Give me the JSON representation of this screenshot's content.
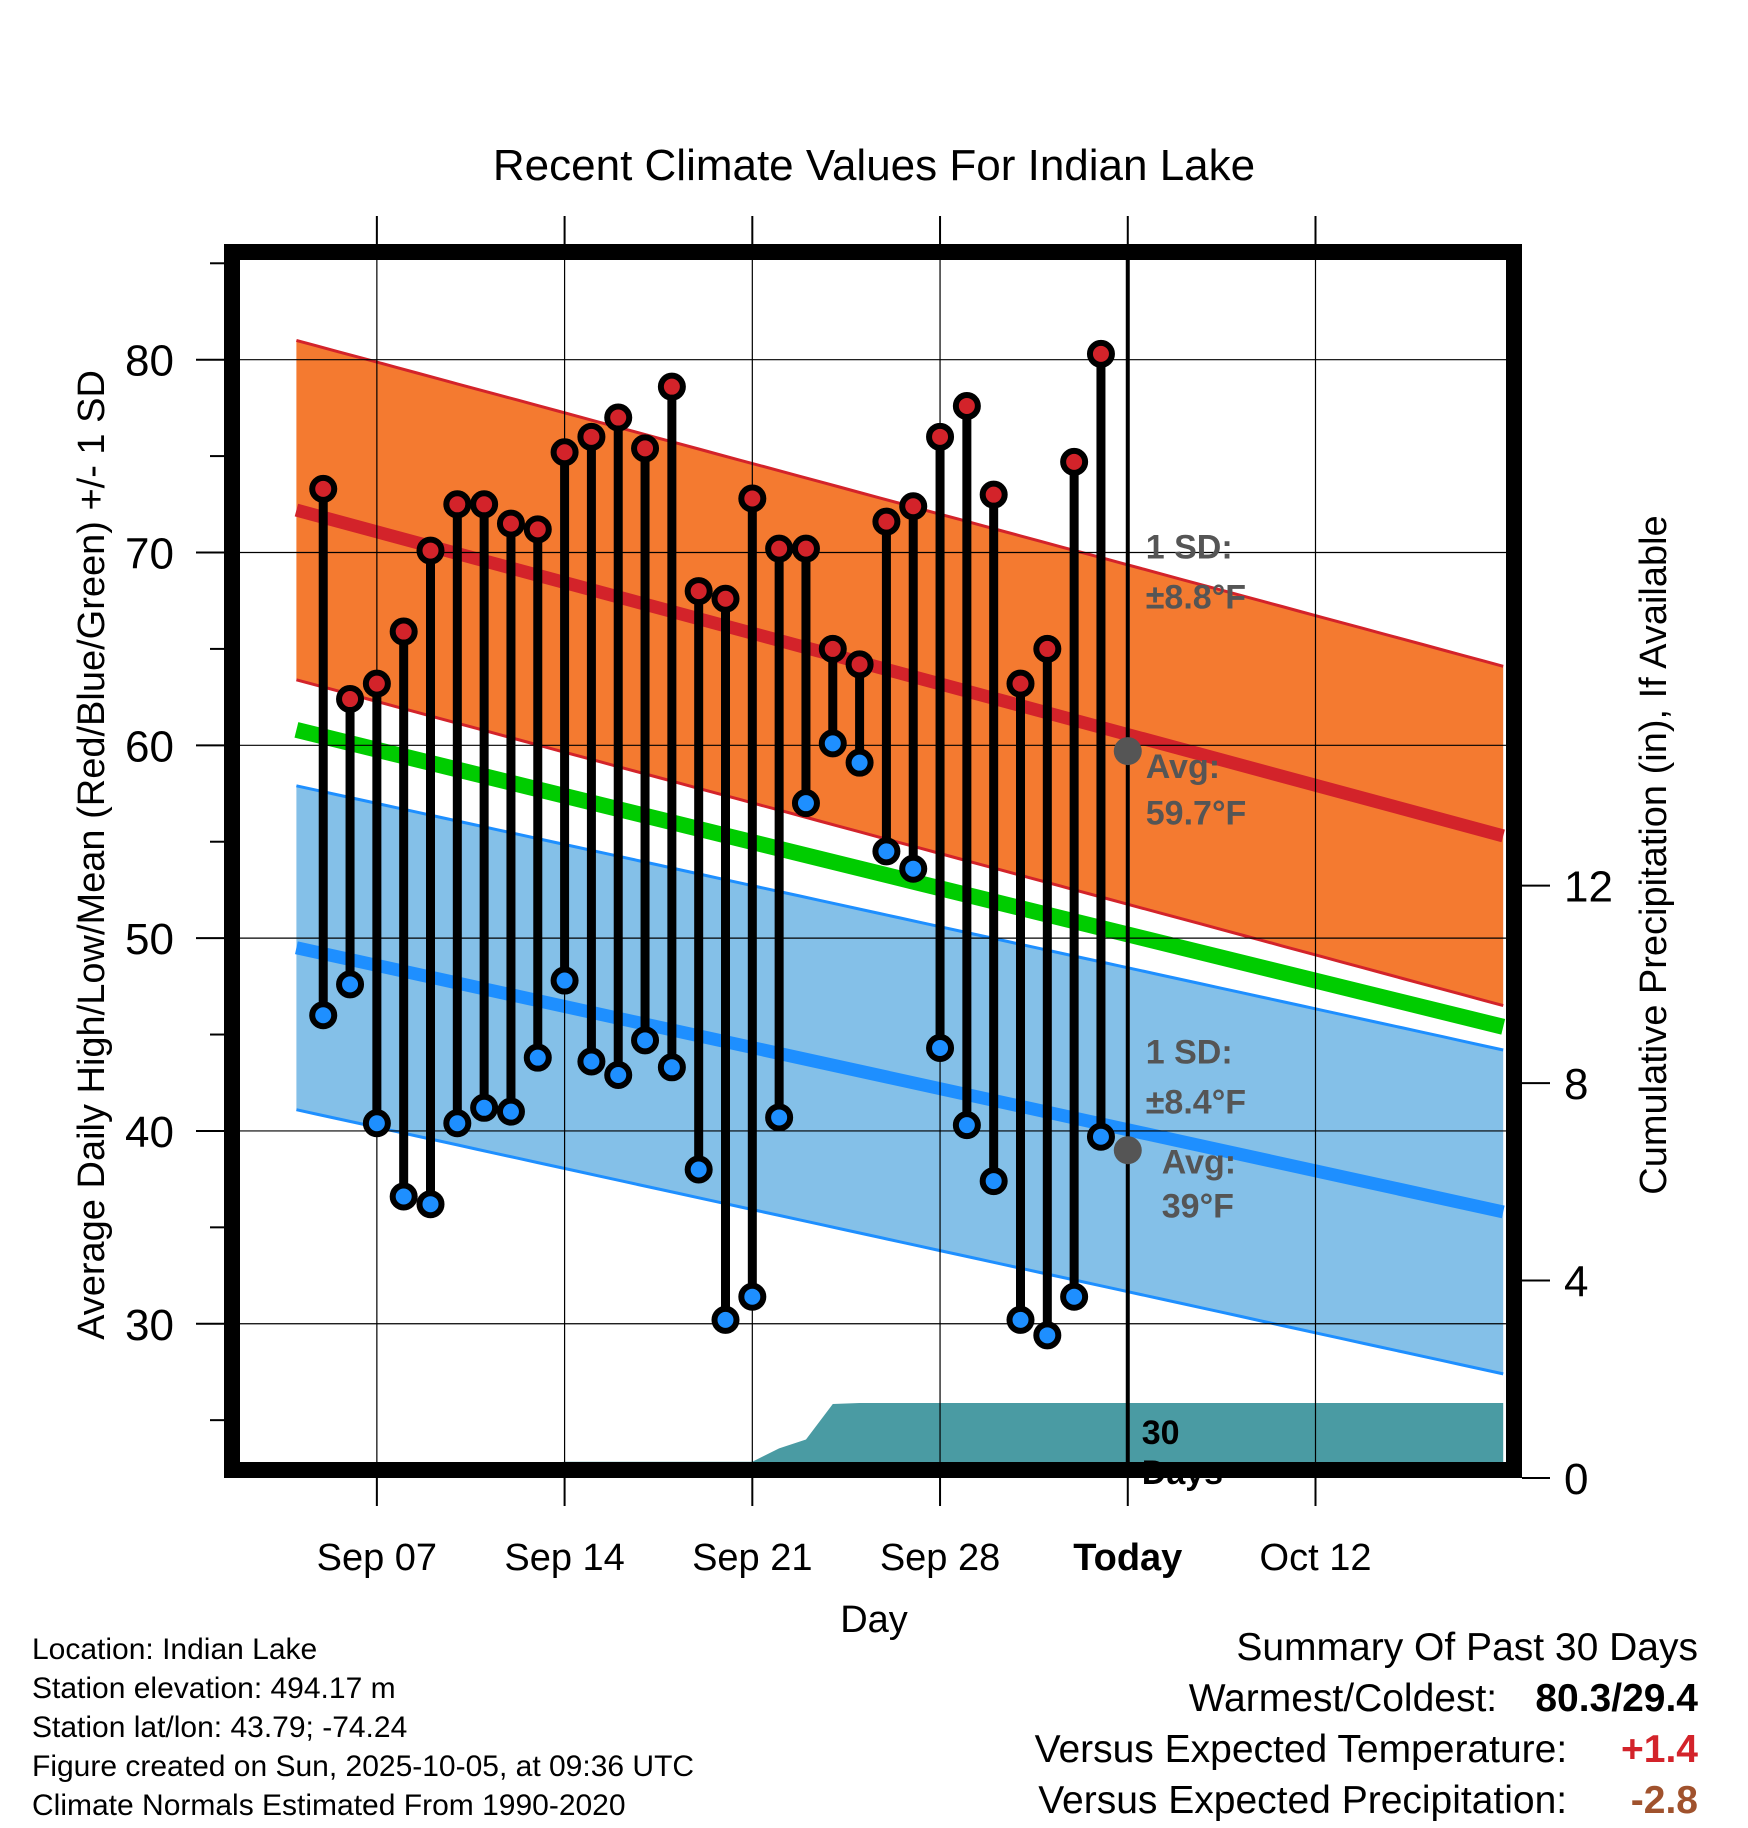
{
  "chart_data": {
    "type": "line",
    "title": "Recent Climate Values For Indian Lake",
    "xlabel": "Day",
    "ylabel": "Average Daily High/Low/Mean (Red/Blue/Green) +/- 1 SD",
    "y2label": "Cumulative Precipitation (in), If Available",
    "ylim": [
      22,
      86
    ],
    "y2lim": [
      0,
      25
    ],
    "xlim": [
      -33.7,
      14.7
    ],
    "x_tick_values": [
      -28,
      -21,
      -14,
      -7,
      0,
      7
    ],
    "x_tick_labels": [
      "Sep 07",
      "Sep 14",
      "Sep 21",
      "Sep 28",
      "Today",
      "Oct 12"
    ],
    "y_ticks": [
      30,
      40,
      50,
      60,
      70,
      80
    ],
    "y2_ticks": [
      0,
      4,
      8,
      12
    ],
    "today_x": 0,
    "days_x": [
      -30,
      -29,
      -28,
      -27,
      -26,
      -25,
      -24,
      -23,
      -22,
      -21,
      -20,
      -19,
      -18,
      -17,
      -16,
      -15,
      -14,
      -13,
      -12,
      -11,
      -10,
      -9,
      -8,
      -7,
      -6,
      -5,
      -4,
      -3,
      -2,
      -1
    ],
    "highs": [
      73.3,
      62.4,
      63.2,
      65.9,
      70.1,
      72.5,
      72.5,
      71.5,
      71.2,
      75.2,
      76.0,
      77.0,
      75.4,
      78.6,
      68.0,
      67.6,
      72.8,
      70.2,
      70.2,
      65.0,
      64.2,
      71.6,
      72.4,
      76.0,
      77.6,
      73.0,
      63.2,
      65.0,
      74.7,
      80.3
    ],
    "lows": [
      46.0,
      47.6,
      40.4,
      36.6,
      36.2,
      40.4,
      41.2,
      41.0,
      43.8,
      47.8,
      43.6,
      42.9,
      44.7,
      43.3,
      38.0,
      30.2,
      31.4,
      40.7,
      57.0,
      60.1,
      59.1,
      54.5,
      53.6,
      44.3,
      40.3,
      37.4,
      30.2,
      29.4,
      31.4,
      39.7
    ],
    "normals_x": [
      -31,
      14
    ],
    "normal_high": [
      72.2,
      55.3
    ],
    "normal_high_sd": 8.8,
    "normal_mean": [
      60.8,
      45.4
    ],
    "normal_low": [
      49.5,
      35.8
    ],
    "normal_low_sd": 8.4,
    "precip_x": [
      -30,
      -29,
      -28,
      -22,
      -21,
      -18,
      -14,
      -13,
      -12,
      -11,
      -10,
      14
    ],
    "precip_cumulative": [
      0.0,
      0.28,
      0.28,
      0.28,
      0.33,
      0.33,
      0.33,
      0.6,
      0.78,
      1.5,
      1.52,
      1.52
    ],
    "annotations": {
      "high_sd_label": "1 SD:",
      "high_sd_value": "±8.8°F",
      "high_avg_label": "Avg:",
      "high_avg_value": "59.7°F",
      "high_avg": 59.7,
      "low_sd_label": "1 SD:",
      "low_sd_value": "±8.4°F",
      "low_avg_label": "Avg:",
      "low_avg_value": "39°F",
      "low_avg": 39,
      "days_label": "30",
      "days_label2": "Days"
    },
    "colors": {
      "high_band": "#f47a30",
      "high_line": "#d3232a",
      "low_band": "#84c0e8",
      "low_line": "#1e8fff",
      "mean_line": "#00cc00",
      "precip": "#4a9ba3",
      "high_dot": "#d3232a",
      "low_dot": "#1e8fff",
      "annotation": "#555555"
    }
  },
  "footer": {
    "location": "Location: Indian Lake",
    "elevation": "Station elevation: 494.17 m",
    "latlon": "Station lat/lon: 43.79; -74.24",
    "created": "Figure created on Sun, 2025-10-05, at 09:36 UTC",
    "normals": "Climate Normals Estimated From 1990-2020"
  },
  "summary": {
    "title": "Summary Of Past 30 Days",
    "warm_cold_label": "Warmest/Coldest:",
    "warm_cold_value": "80.3/29.4",
    "temp_label": "Versus Expected Temperature:",
    "temp_value": "+1.4",
    "temp_color": "#d3232a",
    "precip_label": "Versus Expected Precipitation:",
    "precip_value": "-2.8",
    "precip_color": "#a0522d"
  }
}
